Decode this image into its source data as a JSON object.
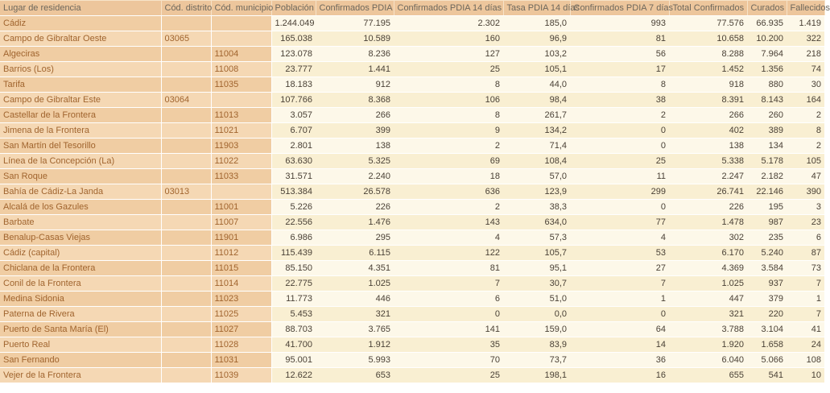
{
  "colors": {
    "header_bg": "#edc69c",
    "header_text": "#6d675c",
    "peach_row_dark": "#f0cda3",
    "peach_row_light": "#f5d8b4",
    "cream_row_light": "#fdf8e9",
    "cream_row_dark": "#f9efd2",
    "name_text": "#a0642e",
    "number_text": "#4a4136",
    "separator": "#ffffff"
  },
  "table": {
    "columns": [
      {
        "id": "name",
        "label": "Lugar de residencia",
        "type": "left"
      },
      {
        "id": "distrito",
        "label": "Cód. distrito",
        "type": "left"
      },
      {
        "id": "municipio",
        "label": "Cód. municipio",
        "type": "left"
      },
      {
        "id": "poblacion",
        "label": "Población",
        "type": "num"
      },
      {
        "id": "conf",
        "label": "Confirmados PDIA",
        "type": "num"
      },
      {
        "id": "conf14",
        "label": "Confirmados PDIA 14 días",
        "type": "num"
      },
      {
        "id": "tasa14",
        "label": "Tasa PDIA 14 días",
        "type": "num"
      },
      {
        "id": "conf7",
        "label": "Confirmados PDIA 7 días",
        "type": "num"
      },
      {
        "id": "total",
        "label": "Total Confirmados",
        "type": "num"
      },
      {
        "id": "curados",
        "label": "Curados",
        "type": "num"
      },
      {
        "id": "fallecidos",
        "label": "Fallecidos",
        "type": "num"
      }
    ],
    "rows": [
      {
        "name": "Cádiz",
        "level": 0,
        "distrito": "",
        "municipio": "",
        "poblacion": "1.244.049",
        "conf": "77.195",
        "conf14": "2.302",
        "tasa14": "185,0",
        "conf7": "993",
        "total": "77.576",
        "curados": "66.935",
        "fallecidos": "1.419"
      },
      {
        "name": "Campo de Gibraltar Oeste",
        "level": 1,
        "distrito": "03065",
        "municipio": "",
        "poblacion": "165.038",
        "conf": "10.589",
        "conf14": "160",
        "tasa14": "96,9",
        "conf7": "81",
        "total": "10.658",
        "curados": "10.200",
        "fallecidos": "322"
      },
      {
        "name": "Algeciras",
        "level": 2,
        "distrito": "",
        "municipio": "11004",
        "poblacion": "123.078",
        "conf": "8.236",
        "conf14": "127",
        "tasa14": "103,2",
        "conf7": "56",
        "total": "8.288",
        "curados": "7.964",
        "fallecidos": "218"
      },
      {
        "name": "Barrios (Los)",
        "level": 2,
        "distrito": "",
        "municipio": "11008",
        "poblacion": "23.777",
        "conf": "1.441",
        "conf14": "25",
        "tasa14": "105,1",
        "conf7": "17",
        "total": "1.452",
        "curados": "1.356",
        "fallecidos": "74"
      },
      {
        "name": "Tarifa",
        "level": 2,
        "distrito": "",
        "municipio": "11035",
        "poblacion": "18.183",
        "conf": "912",
        "conf14": "8",
        "tasa14": "44,0",
        "conf7": "8",
        "total": "918",
        "curados": "880",
        "fallecidos": "30"
      },
      {
        "name": "Campo de Gibraltar Este",
        "level": 1,
        "distrito": "03064",
        "municipio": "",
        "poblacion": "107.766",
        "conf": "8.368",
        "conf14": "106",
        "tasa14": "98,4",
        "conf7": "38",
        "total": "8.391",
        "curados": "8.143",
        "fallecidos": "164"
      },
      {
        "name": "Castellar de la Frontera",
        "level": 2,
        "distrito": "",
        "municipio": "11013",
        "poblacion": "3.057",
        "conf": "266",
        "conf14": "8",
        "tasa14": "261,7",
        "conf7": "2",
        "total": "266",
        "curados": "260",
        "fallecidos": "2"
      },
      {
        "name": "Jimena de la Frontera",
        "level": 2,
        "distrito": "",
        "municipio": "11021",
        "poblacion": "6.707",
        "conf": "399",
        "conf14": "9",
        "tasa14": "134,2",
        "conf7": "0",
        "total": "402",
        "curados": "389",
        "fallecidos": "8"
      },
      {
        "name": "San Martín del Tesorillo",
        "level": 2,
        "distrito": "",
        "municipio": "11903",
        "poblacion": "2.801",
        "conf": "138",
        "conf14": "2",
        "tasa14": "71,4",
        "conf7": "0",
        "total": "138",
        "curados": "134",
        "fallecidos": "2"
      },
      {
        "name": "Línea de la Concepción (La)",
        "level": 2,
        "distrito": "",
        "municipio": "11022",
        "poblacion": "63.630",
        "conf": "5.325",
        "conf14": "69",
        "tasa14": "108,4",
        "conf7": "25",
        "total": "5.338",
        "curados": "5.178",
        "fallecidos": "105"
      },
      {
        "name": "San Roque",
        "level": 2,
        "distrito": "",
        "municipio": "11033",
        "poblacion": "31.571",
        "conf": "2.240",
        "conf14": "18",
        "tasa14": "57,0",
        "conf7": "11",
        "total": "2.247",
        "curados": "2.182",
        "fallecidos": "47"
      },
      {
        "name": "Bahía de Cádiz-La Janda",
        "level": 1,
        "distrito": "03013",
        "municipio": "",
        "poblacion": "513.384",
        "conf": "26.578",
        "conf14": "636",
        "tasa14": "123,9",
        "conf7": "299",
        "total": "26.741",
        "curados": "22.146",
        "fallecidos": "390"
      },
      {
        "name": "Alcalá de los Gazules",
        "level": 2,
        "distrito": "",
        "municipio": "11001",
        "poblacion": "5.226",
        "conf": "226",
        "conf14": "2",
        "tasa14": "38,3",
        "conf7": "0",
        "total": "226",
        "curados": "195",
        "fallecidos": "3"
      },
      {
        "name": "Barbate",
        "level": 2,
        "distrito": "",
        "municipio": "11007",
        "poblacion": "22.556",
        "conf": "1.476",
        "conf14": "143",
        "tasa14": "634,0",
        "conf7": "77",
        "total": "1.478",
        "curados": "987",
        "fallecidos": "23"
      },
      {
        "name": "Benalup-Casas Viejas",
        "level": 2,
        "distrito": "",
        "municipio": "11901",
        "poblacion": "6.986",
        "conf": "295",
        "conf14": "4",
        "tasa14": "57,3",
        "conf7": "4",
        "total": "302",
        "curados": "235",
        "fallecidos": "6"
      },
      {
        "name": "Cádiz (capital)",
        "level": 2,
        "distrito": "",
        "municipio": "11012",
        "poblacion": "115.439",
        "conf": "6.115",
        "conf14": "122",
        "tasa14": "105,7",
        "conf7": "53",
        "total": "6.170",
        "curados": "5.240",
        "fallecidos": "87"
      },
      {
        "name": "Chiclana de la Frontera",
        "level": 2,
        "distrito": "",
        "municipio": "11015",
        "poblacion": "85.150",
        "conf": "4.351",
        "conf14": "81",
        "tasa14": "95,1",
        "conf7": "27",
        "total": "4.369",
        "curados": "3.584",
        "fallecidos": "73"
      },
      {
        "name": "Conil de la Frontera",
        "level": 2,
        "distrito": "",
        "municipio": "11014",
        "poblacion": "22.775",
        "conf": "1.025",
        "conf14": "7",
        "tasa14": "30,7",
        "conf7": "7",
        "total": "1.025",
        "curados": "937",
        "fallecidos": "7"
      },
      {
        "name": "Medina Sidonia",
        "level": 2,
        "distrito": "",
        "municipio": "11023",
        "poblacion": "11.773",
        "conf": "446",
        "conf14": "6",
        "tasa14": "51,0",
        "conf7": "1",
        "total": "447",
        "curados": "379",
        "fallecidos": "1"
      },
      {
        "name": "Paterna de Rivera",
        "level": 2,
        "distrito": "",
        "municipio": "11025",
        "poblacion": "5.453",
        "conf": "321",
        "conf14": "0",
        "tasa14": "0,0",
        "conf7": "0",
        "total": "321",
        "curados": "220",
        "fallecidos": "7"
      },
      {
        "name": "Puerto de Santa María (El)",
        "level": 2,
        "distrito": "",
        "municipio": "11027",
        "poblacion": "88.703",
        "conf": "3.765",
        "conf14": "141",
        "tasa14": "159,0",
        "conf7": "64",
        "total": "3.788",
        "curados": "3.104",
        "fallecidos": "41"
      },
      {
        "name": "Puerto Real",
        "level": 2,
        "distrito": "",
        "municipio": "11028",
        "poblacion": "41.700",
        "conf": "1.912",
        "conf14": "35",
        "tasa14": "83,9",
        "conf7": "14",
        "total": "1.920",
        "curados": "1.658",
        "fallecidos": "24"
      },
      {
        "name": "San Fernando",
        "level": 2,
        "distrito": "",
        "municipio": "11031",
        "poblacion": "95.001",
        "conf": "5.993",
        "conf14": "70",
        "tasa14": "73,7",
        "conf7": "36",
        "total": "6.040",
        "curados": "5.066",
        "fallecidos": "108"
      },
      {
        "name": "Vejer de la Frontera",
        "level": 2,
        "distrito": "",
        "municipio": "11039",
        "poblacion": "12.622",
        "conf": "653",
        "conf14": "25",
        "tasa14": "198,1",
        "conf7": "16",
        "total": "655",
        "curados": "541",
        "fallecidos": "10"
      }
    ]
  }
}
